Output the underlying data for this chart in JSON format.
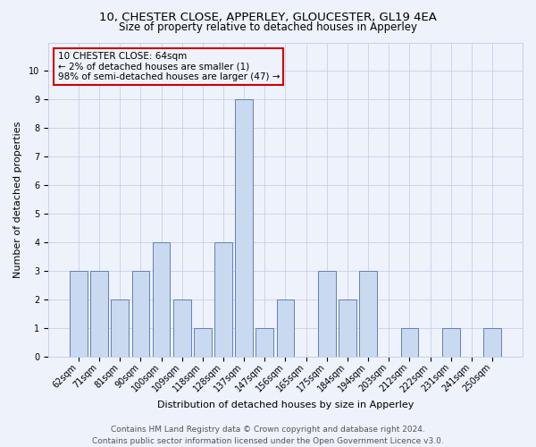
{
  "title_line1": "10, CHESTER CLOSE, APPERLEY, GLOUCESTER, GL19 4EA",
  "title_line2": "Size of property relative to detached houses in Apperley",
  "xlabel": "Distribution of detached houses by size in Apperley",
  "ylabel": "Number of detached properties",
  "categories": [
    "62sqm",
    "71sqm",
    "81sqm",
    "90sqm",
    "100sqm",
    "109sqm",
    "118sqm",
    "128sqm",
    "137sqm",
    "147sqm",
    "156sqm",
    "165sqm",
    "175sqm",
    "184sqm",
    "194sqm",
    "203sqm",
    "212sqm",
    "222sqm",
    "231sqm",
    "241sqm",
    "250sqm"
  ],
  "values": [
    3,
    3,
    2,
    3,
    4,
    2,
    1,
    4,
    9,
    1,
    2,
    0,
    3,
    2,
    3,
    0,
    1,
    0,
    1,
    0,
    1
  ],
  "bar_color": "#c9d9f0",
  "bar_edge_color": "#6080b8",
  "annotation_box_text": "10 CHESTER CLOSE: 64sqm\n← 2% of detached houses are smaller (1)\n98% of semi-detached houses are larger (47) →",
  "annotation_box_edge": "#cc0000",
  "ylim": [
    0,
    11
  ],
  "yticks": [
    0,
    1,
    2,
    3,
    4,
    5,
    6,
    7,
    8,
    9,
    10
  ],
  "footer_line1": "Contains HM Land Registry data © Crown copyright and database right 2024.",
  "footer_line2": "Contains public sector information licensed under the Open Government Licence v3.0.",
  "background_color": "#eef2fb",
  "grid_color": "#c8cfe8",
  "title_fontsize": 9.5,
  "subtitle_fontsize": 8.5,
  "axis_label_fontsize": 8,
  "tick_fontsize": 7,
  "annotation_fontsize": 7.5,
  "footer_fontsize": 6.5
}
